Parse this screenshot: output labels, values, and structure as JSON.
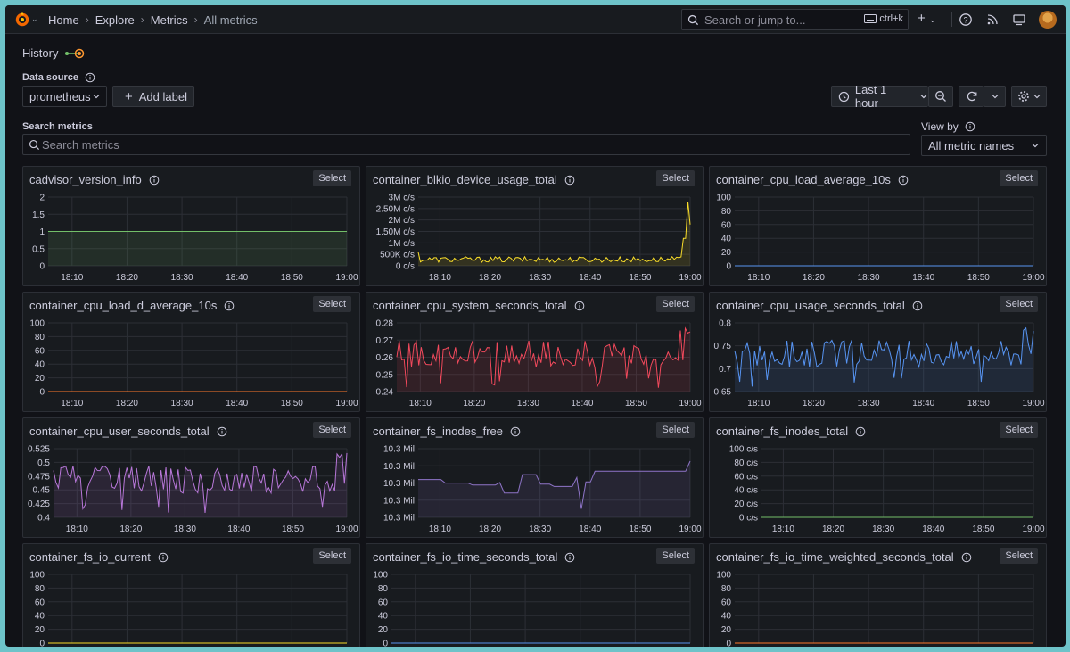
{
  "nav": {
    "breadcrumbs": [
      "Home",
      "Explore",
      "Metrics",
      "All metrics"
    ],
    "search_placeholder": "Search or jump to...",
    "search_shortcut": "ctrl+k"
  },
  "history_label": "History",
  "data_source": {
    "label": "Data source",
    "value": "prometheus"
  },
  "add_label_button": "Add label",
  "time_picker": {
    "label": "Last 1 hour"
  },
  "search_metrics": {
    "label": "Search metrics",
    "placeholder": "Search metrics"
  },
  "view_by": {
    "label": "View by",
    "value": "All metric names"
  },
  "select_label": "Select",
  "x_ticks": [
    "18:10",
    "18:20",
    "18:30",
    "18:40",
    "18:50",
    "19:00"
  ],
  "panels": [
    {
      "title": "cadvisor_version_info",
      "color": "#73bf69",
      "y_ticks": [
        "2",
        "1.5",
        "1",
        "0.5",
        "0"
      ],
      "kind": "flat",
      "level": 1,
      "ymin": 0,
      "ymax": 2
    },
    {
      "title": "container_blkio_device_usage_total",
      "color": "#fade2a",
      "y_ticks": [
        "3M c/s",
        "2.50M c/s",
        "2M c/s",
        "1.50M c/s",
        "1M c/s",
        "500K c/s",
        "0 c/s"
      ],
      "kind": "spike",
      "ymin": 0,
      "ymax": 3000000
    },
    {
      "title": "container_cpu_load_average_10s",
      "color": "#5794f2",
      "y_ticks": [
        "100",
        "80",
        "60",
        "40",
        "20",
        "0"
      ],
      "kind": "flat",
      "level": 0,
      "ymin": 0,
      "ymax": 100
    },
    {
      "title": "container_cpu_load_d_average_10s",
      "color": "#ff7a2b",
      "y_ticks": [
        "100",
        "80",
        "60",
        "40",
        "20",
        "0"
      ],
      "kind": "flat",
      "level": 0,
      "ymin": 0,
      "ymax": 100
    },
    {
      "title": "container_cpu_system_seconds_total",
      "color": "#f2495c",
      "y_ticks": [
        "0.28",
        "0.27",
        "0.26",
        "0.25",
        "0.24"
      ],
      "kind": "noisy",
      "ymin": 0.24,
      "ymax": 0.28
    },
    {
      "title": "container_cpu_usage_seconds_total",
      "color": "#5794f2",
      "y_ticks": [
        "0.8",
        "0.75",
        "0.7",
        "0.65"
      ],
      "kind": "noisy",
      "ymin": 0.65,
      "ymax": 0.8
    },
    {
      "title": "container_cpu_user_seconds_total",
      "color": "#b877d9",
      "y_ticks": [
        "0.525",
        "0.5",
        "0.475",
        "0.45",
        "0.425",
        "0.4"
      ],
      "kind": "noisy",
      "ymin": 0.4,
      "ymax": 0.525
    },
    {
      "title": "container_fs_inodes_free",
      "color": "#8f75c9",
      "y_ticks": [
        "10.3 Mil",
        "10.3 Mil",
        "10.3 Mil",
        "10.3 Mil",
        "10.3 Mil"
      ],
      "kind": "steps",
      "ymin": 0,
      "ymax": 1
    },
    {
      "title": "container_fs_inodes_total",
      "color": "#73bf69",
      "y_ticks": [
        "100 c/s",
        "80 c/s",
        "60 c/s",
        "40 c/s",
        "20 c/s",
        "0 c/s"
      ],
      "kind": "flat",
      "level": 0,
      "ymin": 0,
      "ymax": 100
    },
    {
      "title": "container_fs_io_current",
      "color": "#fade2a",
      "y_ticks": [
        "100",
        "80",
        "60",
        "40",
        "20",
        "0"
      ],
      "kind": "flat",
      "level": 0,
      "ymin": 0,
      "ymax": 100
    },
    {
      "title": "container_fs_io_time_seconds_total",
      "color": "#5794f2",
      "y_ticks": [
        "100",
        "80",
        "60",
        "40",
        "20",
        "0"
      ],
      "kind": "flat",
      "level": 0,
      "ymin": 0,
      "ymax": 100
    },
    {
      "title": "container_fs_io_time_weighted_seconds_total",
      "color": "#ff7a2b",
      "y_ticks": [
        "100",
        "80",
        "60",
        "40",
        "20",
        "0"
      ],
      "kind": "flat",
      "level": 0,
      "ymin": 0,
      "ymax": 100
    }
  ]
}
